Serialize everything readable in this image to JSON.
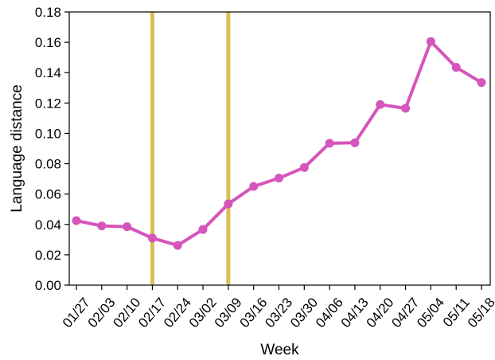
{
  "chart_data": {
    "type": "line",
    "title": "",
    "xlabel": "Week",
    "ylabel": "Language distance",
    "categories": [
      "01/27",
      "02/03",
      "02/10",
      "02/17",
      "02/24",
      "03/02",
      "03/09",
      "03/16",
      "03/23",
      "03/30",
      "04/06",
      "04/13",
      "04/20",
      "04/27",
      "05/04",
      "05/11",
      "05/18"
    ],
    "series": [
      {
        "color": "#d655bb",
        "values": [
          0.0425,
          0.039,
          0.0385,
          0.031,
          0.0262,
          0.0367,
          0.0535,
          0.065,
          0.0705,
          0.0775,
          0.0935,
          0.0938,
          0.119,
          0.1165,
          0.1605,
          0.1435,
          0.1335
        ]
      }
    ],
    "vertical_lines": [
      {
        "x": "02/17",
        "color": "#d9bf55"
      },
      {
        "x": "03/09",
        "color": "#d9bf55"
      }
    ],
    "ylim": [
      0,
      0.18
    ],
    "yticks": [
      "0.00",
      "0.02",
      "0.04",
      "0.06",
      "0.08",
      "0.10",
      "0.12",
      "0.14",
      "0.16",
      "0.18"
    ],
    "grid": false,
    "legend": "none"
  }
}
